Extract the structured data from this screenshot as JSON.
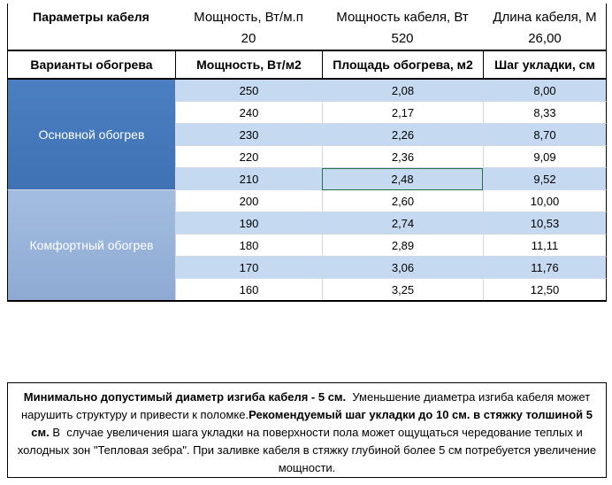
{
  "params": {
    "labels": [
      "Параметры кабеля",
      "Мощность, Вт/м.п",
      "Мощность кабеля, Вт",
      "Длина кабеля, М"
    ],
    "values": [
      "20",
      "520",
      "26,00"
    ]
  },
  "table": {
    "headers": [
      "Варианты обогрева",
      "Мощность, Вт/м2",
      "Площадь обогрева, м2",
      "Шаг укладки, см"
    ],
    "groups": [
      {
        "label": "Основной обогрев",
        "rows": [
          [
            "250",
            "2,08",
            "8,00"
          ],
          [
            "240",
            "2,17",
            "8,33"
          ],
          [
            "230",
            "2,26",
            "8,70"
          ],
          [
            "220",
            "2,36",
            "9,09"
          ],
          [
            "210",
            "2,48",
            "9,52"
          ]
        ]
      },
      {
        "label": "Комфортный обогрев",
        "rows": [
          [
            "200",
            "2,60",
            "10,00"
          ],
          [
            "190",
            "2,74",
            "10,53"
          ],
          [
            "180",
            "2,89",
            "11,11"
          ],
          [
            "170",
            "3,06",
            "11,76"
          ],
          [
            "160",
            "3,25",
            "12,50"
          ]
        ]
      }
    ]
  },
  "note": {
    "segments": [
      {
        "text": "Минимально допустимый диаметр изгиба кабеля - 5 см.",
        "bold": true
      },
      {
        "text": "  Уменьшение диаметра изгиба кабеля может нарушить структуру и привести к поломке.",
        "bold": false
      },
      {
        "text": "Рекомендуемый шаг укладки до 10 см. в стяжку толшиной 5 см.",
        "bold": true
      },
      {
        "text": " В  случае увеличения шага укладки на поверхности пола может ощущаться чередование теплых и холодных зон \"Тепловая зебра\". При заливке кабеля в стяжку глубиной более 5 см потребуется увеличение мощности.",
        "bold": false
      }
    ]
  }
}
